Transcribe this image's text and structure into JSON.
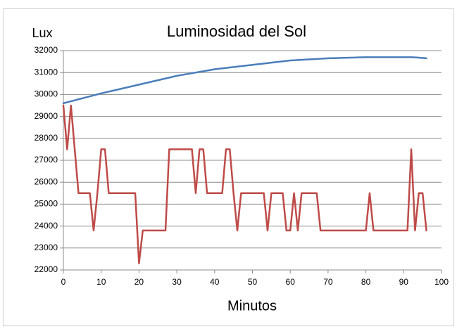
{
  "chart_data": {
    "type": "line",
    "title": "Luminosidad del Sol",
    "ylabel": "Lux",
    "xlabel": "Minutos",
    "x": [
      0,
      1,
      2,
      3,
      4,
      5,
      6,
      7,
      8,
      9,
      10,
      11,
      12,
      13,
      14,
      15,
      16,
      17,
      18,
      19,
      20,
      21,
      22,
      23,
      24,
      25,
      26,
      27,
      28,
      29,
      30,
      31,
      32,
      33,
      34,
      35,
      36,
      37,
      38,
      39,
      40,
      41,
      42,
      43,
      44,
      45,
      46,
      47,
      48,
      49,
      50,
      51,
      52,
      53,
      54,
      55,
      56,
      57,
      58,
      59,
      60,
      61,
      62,
      63,
      64,
      65,
      66,
      67,
      68,
      69,
      70,
      71,
      72,
      73,
      74,
      75,
      76,
      77,
      78,
      79,
      80,
      81,
      82,
      83,
      84,
      85,
      86,
      87,
      88,
      89,
      90,
      91,
      92,
      93,
      94,
      95,
      96
    ],
    "series": [
      {
        "color": "#4a7ebb",
        "values": [
          29600,
          29645,
          29690,
          29735,
          29780,
          29825,
          29870,
          29915,
          29960,
          30005,
          30050,
          30090,
          30130,
          30170,
          30210,
          30250,
          30290,
          30330,
          30370,
          30410,
          30450,
          30490,
          30530,
          30570,
          30610,
          30650,
          30690,
          30730,
          30770,
          30810,
          30850,
          30880,
          30910,
          30940,
          30970,
          31000,
          31030,
          31060,
          31090,
          31120,
          31150,
          31170,
          31190,
          31210,
          31230,
          31250,
          31270,
          31290,
          31310,
          31330,
          31350,
          31370,
          31390,
          31410,
          31430,
          31450,
          31470,
          31490,
          31510,
          31530,
          31550,
          31560,
          31570,
          31580,
          31590,
          31600,
          31610,
          31620,
          31630,
          31640,
          31650,
          31655,
          31660,
          31665,
          31670,
          31675,
          31680,
          31685,
          31690,
          31695,
          31700,
          31700,
          31700,
          31700,
          31700,
          31700,
          31700,
          31700,
          31700,
          31700,
          31700,
          31700,
          31700,
          31690,
          31680,
          31665,
          31650
        ]
      },
      {
        "color": "#be4b48",
        "values": [
          29500,
          27500,
          29500,
          27500,
          25500,
          25500,
          25500,
          25500,
          23800,
          25500,
          27500,
          27500,
          25500,
          25500,
          25500,
          25500,
          25500,
          25500,
          25500,
          25500,
          22300,
          23800,
          23800,
          23800,
          23800,
          23800,
          23800,
          23800,
          27500,
          27500,
          27500,
          27500,
          27500,
          27500,
          27500,
          25500,
          27500,
          27500,
          25500,
          25500,
          25500,
          25500,
          25500,
          27500,
          27500,
          25500,
          23800,
          25500,
          25500,
          25500,
          25500,
          25500,
          25500,
          25500,
          23800,
          25500,
          25500,
          25500,
          25500,
          23800,
          23800,
          25500,
          23800,
          25500,
          25500,
          25500,
          25500,
          25500,
          23800,
          23800,
          23800,
          23800,
          23800,
          23800,
          23800,
          23800,
          23800,
          23800,
          23800,
          23800,
          23800,
          25500,
          23800,
          23800,
          23800,
          23800,
          23800,
          23800,
          23800,
          23800,
          23800,
          23800,
          27500,
          23800,
          25500,
          25500,
          23800
        ]
      }
    ],
    "xlim": [
      0,
      100
    ],
    "xticks": [
      0,
      10,
      20,
      30,
      40,
      50,
      60,
      70,
      80,
      90,
      100
    ],
    "ylim": [
      22000,
      32000
    ],
    "yticks": [
      22000,
      23000,
      24000,
      25000,
      26000,
      27000,
      28000,
      29000,
      30000,
      31000,
      32000
    ],
    "grid": true
  }
}
